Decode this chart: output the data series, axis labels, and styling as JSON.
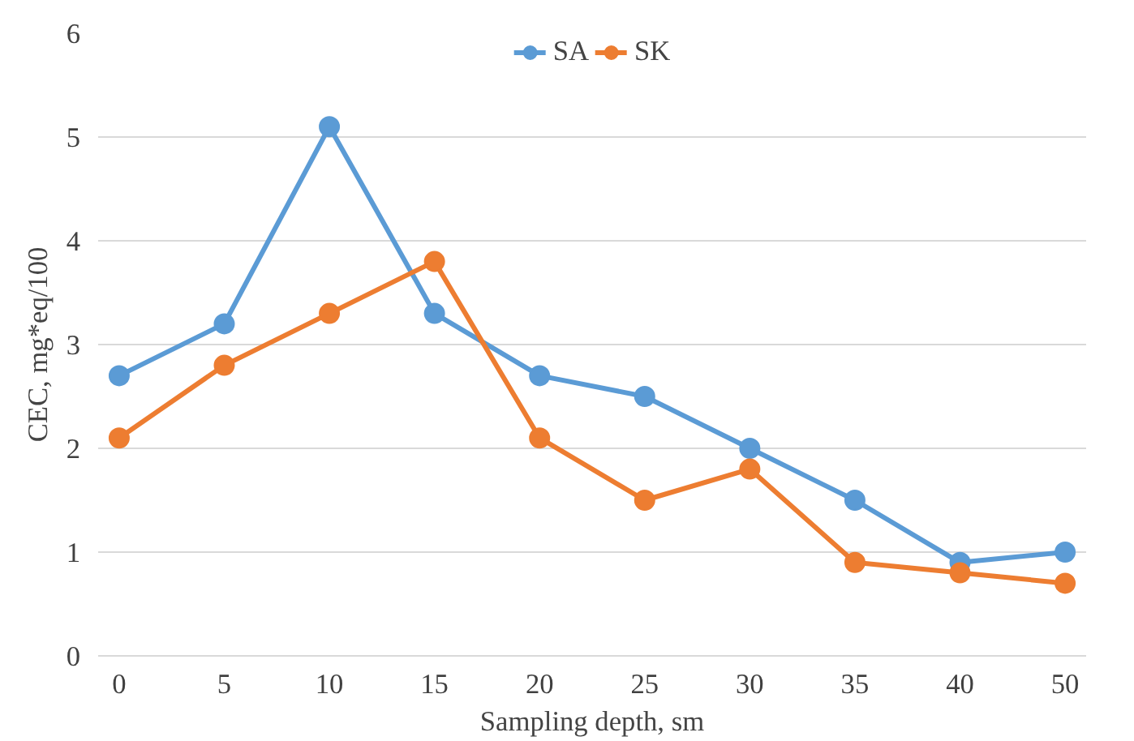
{
  "chart_data": {
    "type": "line",
    "xlabel": "Sampling depth, sm",
    "ylabel": "CEC, mg*eq/100",
    "categories": [
      "0",
      "5",
      "10",
      "15",
      "20",
      "25",
      "30",
      "35",
      "40",
      "50"
    ],
    "series": [
      {
        "name": "SA",
        "color": "#5b9bd5",
        "values": [
          2.7,
          3.2,
          5.1,
          3.3,
          2.7,
          2.5,
          2.0,
          1.5,
          0.9,
          1.0
        ]
      },
      {
        "name": "SK",
        "color": "#ed7d31",
        "values": [
          2.1,
          2.8,
          3.3,
          3.8,
          2.1,
          1.5,
          1.8,
          0.9,
          0.8,
          0.7
        ]
      }
    ],
    "ylim": [
      0,
      6
    ],
    "yticks": [
      0,
      1,
      2,
      3,
      4,
      5,
      6
    ],
    "grid": "y",
    "legend": "top",
    "marker": "circle",
    "line_style": "solid"
  }
}
